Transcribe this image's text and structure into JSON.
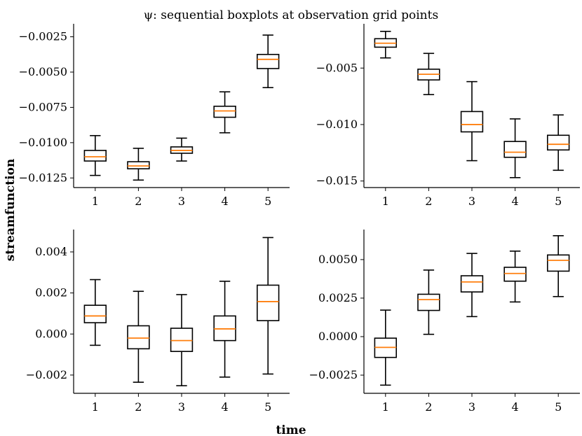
{
  "figure": {
    "title": "ψ: sequential boxplots at observation grid points",
    "xlabel": "time",
    "ylabel": "streamfunction"
  },
  "colors": {
    "box": "#000000",
    "median": "#ff7f0e",
    "axis": "#000000"
  },
  "chart_data": [
    {
      "type": "boxplot",
      "position": "top-left",
      "categories": [
        "1",
        "2",
        "3",
        "4",
        "5"
      ],
      "ylim": [
        -0.01318,
        -0.00158
      ],
      "yticks": [
        -0.0125,
        -0.01,
        -0.0075,
        -0.005,
        -0.0025
      ],
      "ytick_labels": [
        "−0.0125",
        "−0.0100",
        "−0.0075",
        "−0.0050",
        "−0.0025"
      ],
      "boxes": [
        {
          "whislo": -0.01232,
          "q1": -0.0113,
          "med": -0.011,
          "q3": -0.01055,
          "whishi": -0.0095
        },
        {
          "whislo": -0.01265,
          "q1": -0.01185,
          "med": -0.01165,
          "q3": -0.01135,
          "whishi": -0.0104
        },
        {
          "whislo": -0.0113,
          "q1": -0.01075,
          "med": -0.01055,
          "q3": -0.0103,
          "whishi": -0.00968
        },
        {
          "whislo": -0.0093,
          "q1": -0.0082,
          "med": -0.00775,
          "q3": -0.00742,
          "whishi": -0.0064
        },
        {
          "whislo": -0.0061,
          "q1": -0.00475,
          "med": -0.0041,
          "q3": -0.00375,
          "whishi": -0.00238
        }
      ]
    },
    {
      "type": "boxplot",
      "position": "top-right",
      "categories": [
        "1",
        "2",
        "3",
        "4",
        "5"
      ],
      "ylim": [
        -0.01558,
        -0.00108
      ],
      "yticks": [
        -0.015,
        -0.01,
        -0.005
      ],
      "ytick_labels": [
        "−0.015",
        "−0.010",
        "−0.005"
      ],
      "boxes": [
        {
          "whislo": -0.0041,
          "q1": -0.00315,
          "med": -0.0028,
          "q3": -0.0024,
          "whishi": -0.00175
        },
        {
          "whislo": -0.00735,
          "q1": -0.00605,
          "med": -0.00555,
          "q3": -0.0051,
          "whishi": -0.0037
        },
        {
          "whislo": -0.0132,
          "q1": -0.01065,
          "med": -0.01,
          "q3": -0.00885,
          "whishi": -0.0062
        },
        {
          "whislo": -0.0147,
          "q1": -0.0129,
          "med": -0.01245,
          "q3": -0.0115,
          "whishi": -0.0095
        },
        {
          "whislo": -0.01405,
          "q1": -0.01225,
          "med": -0.01175,
          "q3": -0.01095,
          "whishi": -0.00915
        }
      ]
    },
    {
      "type": "boxplot",
      "position": "bottom-left",
      "categories": [
        "1",
        "2",
        "3",
        "4",
        "5"
      ],
      "ylim": [
        -0.00289,
        0.00509
      ],
      "yticks": [
        -0.002,
        0.0,
        0.002,
        0.004
      ],
      "ytick_labels": [
        "−0.002",
        "0.000",
        "0.002",
        "0.004"
      ],
      "boxes": [
        {
          "whislo": -0.00055,
          "q1": 0.00055,
          "med": 0.00088,
          "q3": 0.0014,
          "whishi": 0.00265
        },
        {
          "whislo": -0.00235,
          "q1": -0.00072,
          "med": -0.0002,
          "q3": 0.0004,
          "whishi": 0.00208
        },
        {
          "whislo": -0.00252,
          "q1": -0.00085,
          "med": -0.00032,
          "q3": 0.00028,
          "whishi": 0.00192
        },
        {
          "whislo": -0.0021,
          "q1": -0.00032,
          "med": 0.00025,
          "q3": 0.00088,
          "whishi": 0.00257
        },
        {
          "whislo": -0.00195,
          "q1": 0.00065,
          "med": 0.00158,
          "q3": 0.00238,
          "whishi": 0.0047
        }
      ]
    },
    {
      "type": "boxplot",
      "position": "bottom-right",
      "categories": [
        "1",
        "2",
        "3",
        "4",
        "5"
      ],
      "ylim": [
        -0.00368,
        0.00695
      ],
      "yticks": [
        -0.0025,
        0.0,
        0.0025,
        0.005
      ],
      "ytick_labels": [
        "−0.0025",
        "0.0000",
        "0.0025",
        "0.0050"
      ],
      "boxes": [
        {
          "whislo": -0.00315,
          "q1": -0.00135,
          "med": -0.0007,
          "q3": -0.0001,
          "whishi": 0.00172
        },
        {
          "whislo": 0.00015,
          "q1": 0.0017,
          "med": 0.0024,
          "q3": 0.00275,
          "whishi": 0.00432
        },
        {
          "whislo": 0.0013,
          "q1": 0.0029,
          "med": 0.00355,
          "q3": 0.00395,
          "whishi": 0.0054
        },
        {
          "whislo": 0.00225,
          "q1": 0.0036,
          "med": 0.0041,
          "q3": 0.0045,
          "whishi": 0.00555
        },
        {
          "whislo": 0.0026,
          "q1": 0.00425,
          "med": 0.00495,
          "q3": 0.0053,
          "whishi": 0.00655
        }
      ]
    }
  ]
}
